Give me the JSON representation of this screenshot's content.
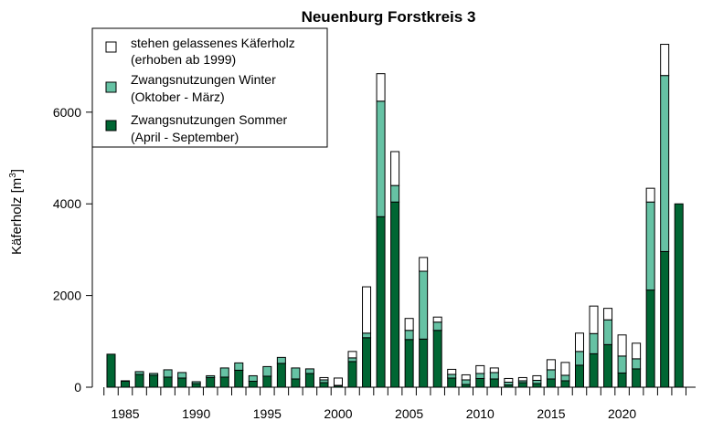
{
  "chart_data": {
    "type": "bar",
    "stacked": true,
    "title": "Neuenburg Forstkreis 3",
    "ylabel": "Käferholz [m",
    "ylabel_sup": "3",
    "ylabel_end": "]",
    "xlabel": "",
    "ylim": [
      0,
      7800
    ],
    "yticks": [
      0,
      2000,
      4000,
      6000
    ],
    "xtick_labels": [
      1985,
      1990,
      1995,
      2000,
      2005,
      2010,
      2015,
      2020
    ],
    "grid": false,
    "legend_position": "top-left",
    "years": [
      1984,
      1985,
      1986,
      1987,
      1988,
      1989,
      1990,
      1991,
      1992,
      1993,
      1994,
      1995,
      1996,
      1997,
      1998,
      1999,
      2000,
      2001,
      2002,
      2003,
      2004,
      2005,
      2006,
      2007,
      2008,
      2009,
      2010,
      2011,
      2012,
      2013,
      2014,
      2015,
      2016,
      2017,
      2018,
      2019,
      2020,
      2021,
      2022,
      2023,
      2024
    ],
    "series": [
      {
        "key": "sommer",
        "name_line1": "Zwangsnutzungen Sommer",
        "name_line2": "(April - September)",
        "color": "#006633",
        "values": [
          720,
          130,
          280,
          260,
          220,
          200,
          80,
          210,
          220,
          370,
          130,
          240,
          520,
          180,
          300,
          100,
          30,
          560,
          1080,
          3720,
          4040,
          1040,
          1050,
          1240,
          200,
          60,
          190,
          180,
          50,
          100,
          80,
          180,
          140,
          480,
          730,
          930,
          310,
          400,
          2120,
          2960,
          4000
        ]
      },
      {
        "key": "winter",
        "name_line1": "Zwangsnutzungen Winter",
        "name_line2": "(Oktober - März)",
        "color": "#66c2a4",
        "values": [
          0,
          10,
          60,
          40,
          160,
          120,
          40,
          40,
          200,
          160,
          120,
          210,
          130,
          240,
          100,
          60,
          10,
          80,
          100,
          2520,
          360,
          200,
          1480,
          180,
          80,
          100,
          110,
          140,
          60,
          40,
          70,
          200,
          120,
          300,
          440,
          540,
          370,
          220,
          1920,
          3840,
          0
        ]
      },
      {
        "key": "stehen",
        "name_line1": "stehen gelassenes Käferholz",
        "name_line2": "(erhoben ab 1999)",
        "color": "#ffffff",
        "values": [
          0,
          0,
          0,
          0,
          0,
          0,
          0,
          0,
          0,
          0,
          0,
          0,
          0,
          0,
          0,
          50,
          160,
          140,
          1010,
          600,
          740,
          260,
          300,
          110,
          110,
          110,
          170,
          100,
          80,
          70,
          100,
          220,
          280,
          400,
          600,
          250,
          460,
          340,
          300,
          680,
          0
        ]
      }
    ]
  }
}
